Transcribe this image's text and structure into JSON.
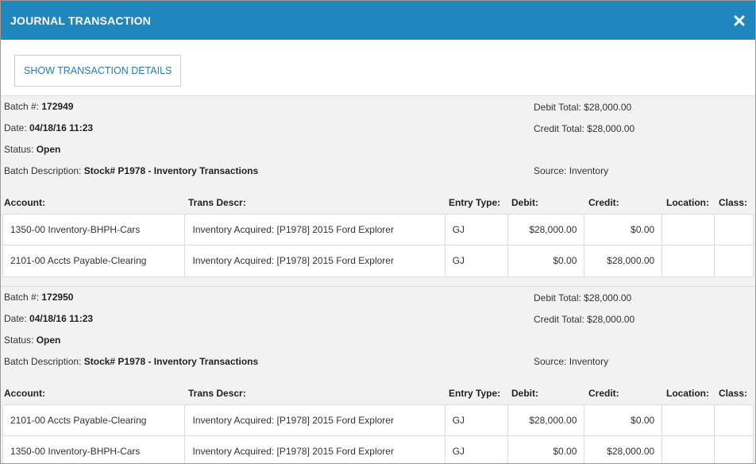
{
  "header": {
    "title": "JOURNAL TRANSACTION"
  },
  "toolbar": {
    "details_button": "SHOW TRANSACTION DETAILS"
  },
  "labels": {
    "batch": "Batch #:",
    "date": "Date:",
    "status": "Status:",
    "description": "Batch Description:",
    "debit_total": "Debit Total:",
    "credit_total": "Credit Total:",
    "source": "Source:"
  },
  "columns": {
    "account": "Account:",
    "trans_descr": "Trans Descr:",
    "entry_type": "Entry Type:",
    "debit": "Debit:",
    "credit": "Credit:",
    "location": "Location:",
    "class": "Class:"
  },
  "batches": [
    {
      "batch_no": "172949",
      "date": "04/18/16 11:23",
      "status": "Open",
      "description": "Stock# P1978 - Inventory Transactions",
      "debit_total": "$28,000.00",
      "credit_total": "$28,000.00",
      "source": "Inventory",
      "rows": [
        {
          "account": "1350-00 Inventory-BHPH-Cars",
          "descr": "Inventory Acquired: [P1978] 2015 Ford Explorer",
          "type": "GJ",
          "debit": "$28,000.00",
          "credit": "$0.00",
          "location": "",
          "class": ""
        },
        {
          "account": "2101-00 Accts Payable-Clearing",
          "descr": "Inventory Acquired: [P1978] 2015 Ford Explorer",
          "type": "GJ",
          "debit": "$0.00",
          "credit": "$28,000.00",
          "location": "",
          "class": ""
        }
      ]
    },
    {
      "batch_no": "172950",
      "date": "04/18/16 11:23",
      "status": "Open",
      "description": "Stock# P1978 - Inventory Transactions",
      "debit_total": "$28,000.00",
      "credit_total": "$28,000.00",
      "source": "Inventory",
      "rows": [
        {
          "account": "2101-00 Accts Payable-Clearing",
          "descr": "Inventory Acquired: [P1978] 2015 Ford Explorer",
          "type": "GJ",
          "debit": "$28,000.00",
          "credit": "$0.00",
          "location": "",
          "class": ""
        },
        {
          "account": "1350-00 Inventory-BHPH-Cars",
          "descr": "Inventory Acquired: [P1978] 2015 Ford Explorer",
          "type": "GJ",
          "debit": "$0.00",
          "credit": "$28,000.00",
          "location": "",
          "class": ""
        }
      ]
    }
  ]
}
